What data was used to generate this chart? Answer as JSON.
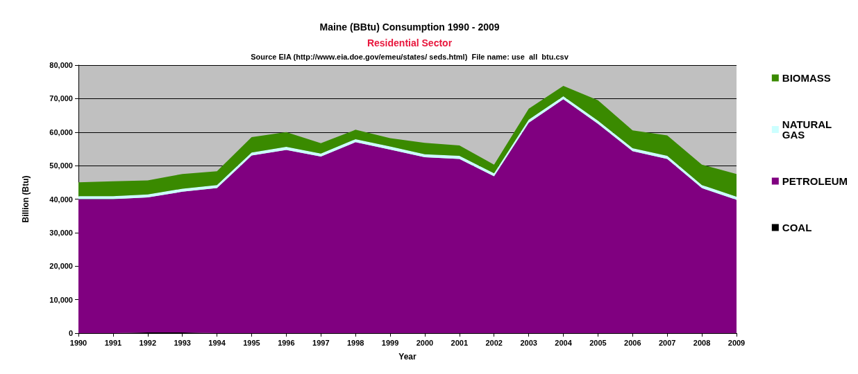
{
  "chart_data": {
    "type": "area",
    "stacked": true,
    "title": "Maine (BBtu) Consumption 1990 - 2009",
    "subtitle": "Residential Sector",
    "annotations": [
      "Source EIA (http://www.eia.doe.gov/emeu/states/ seds.html)  File name: use  all  btu.csv"
    ],
    "xlabel": "Year",
    "ylabel": "Billion (Btu)",
    "categories": [
      "1990",
      "1991",
      "1992",
      "1993",
      "1994",
      "1995",
      "1996",
      "1997",
      "1998",
      "1999",
      "2000",
      "2001",
      "2002",
      "2003",
      "2004",
      "2005",
      "2006",
      "2007",
      "2008",
      "2009"
    ],
    "series": [
      {
        "name": "COAL",
        "color": "#000000",
        "values": [
          0,
          0,
          200,
          200,
          0,
          0,
          0,
          0,
          0,
          0,
          0,
          0,
          0,
          0,
          0,
          0,
          0,
          0,
          0,
          0
        ]
      },
      {
        "name": "PETROLEUM",
        "color": "#800080",
        "values": [
          40000,
          40000,
          40300,
          42000,
          43300,
          53000,
          54700,
          52700,
          57000,
          54800,
          52500,
          52000,
          46800,
          62800,
          69800,
          62500,
          54300,
          52000,
          43300,
          39800
        ]
      },
      {
        "name": "NATURAL GAS",
        "color": "#ccffff",
        "values": [
          900,
          900,
          900,
          900,
          900,
          900,
          900,
          900,
          900,
          900,
          900,
          900,
          900,
          900,
          900,
          900,
          900,
          900,
          900,
          900
        ]
      },
      {
        "name": "BIOMASS",
        "color": "#3a8a00",
        "values": [
          4100,
          4400,
          4200,
          4400,
          4100,
          4600,
          4400,
          3100,
          2800,
          2500,
          3400,
          3100,
          2600,
          3300,
          3100,
          6100,
          5300,
          6100,
          6100,
          6800
        ]
      }
    ],
    "ylim": [
      0,
      80000
    ],
    "yticks": [
      0,
      {
        "value": 10000,
        "label": "10,000"
      },
      {
        "value": 20000,
        "label": "20,000"
      },
      {
        "value": 30000,
        "label": "30,000"
      },
      {
        "value": 40000,
        "label": "40,000"
      },
      {
        "value": 50000,
        "label": "50,000"
      },
      {
        "value": 60000,
        "label": "60,000"
      },
      {
        "value": 70000,
        "label": "70,000"
      },
      {
        "value": 80000,
        "label": "80,000"
      }
    ],
    "grid": "y",
    "legend": "right"
  }
}
